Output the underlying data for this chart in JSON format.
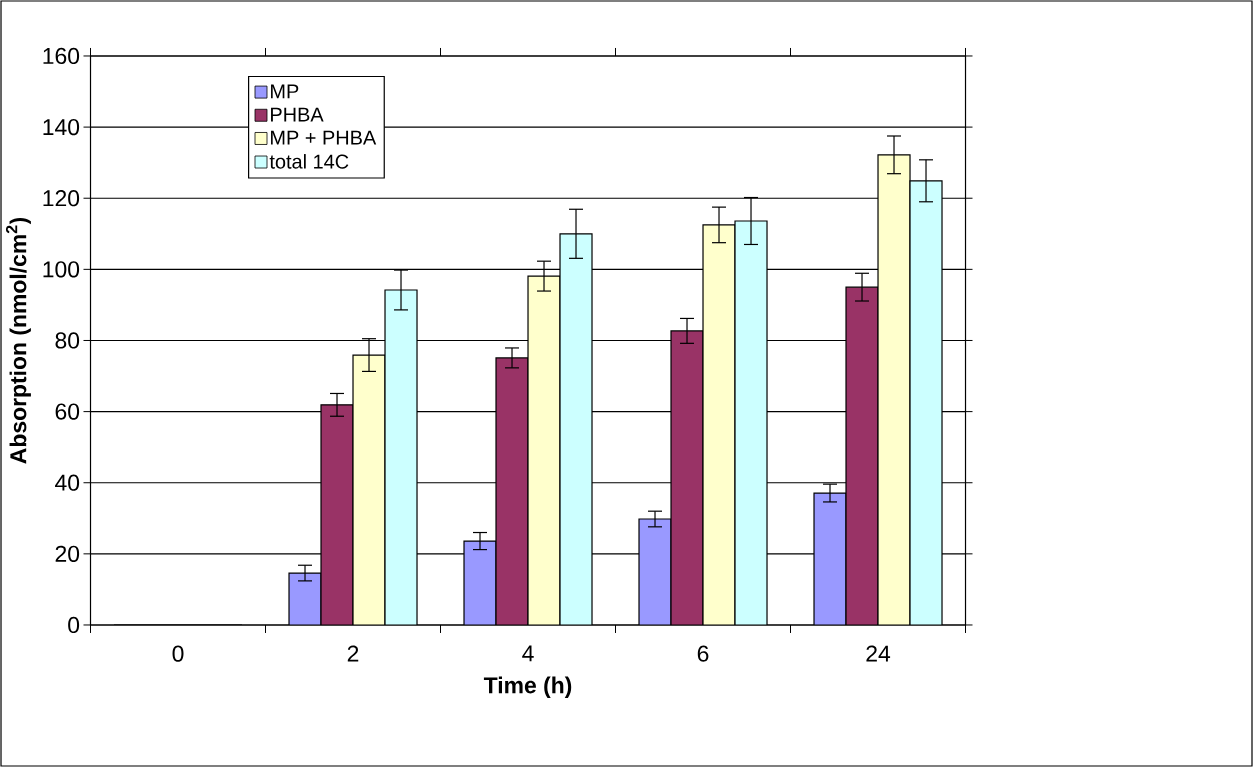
{
  "chart_data": {
    "type": "bar",
    "xlabel": "Time (h)",
    "ylabel": "Absorption (nmol/cm$^{2}$)",
    "categories": [
      "0",
      "2",
      "4",
      "6",
      "24"
    ],
    "series": [
      {
        "name": "MP",
        "color": "#9999ff",
        "values": [
          0,
          14.6,
          23.6,
          29.8,
          37.1
        ],
        "errors": [
          null,
          2.2,
          2.4,
          2.2,
          2.5
        ]
      },
      {
        "name": "PHBA",
        "color": "#993366",
        "values": [
          0,
          61.9,
          75.1,
          82.7,
          95.0
        ],
        "errors": [
          null,
          3.2,
          2.8,
          3.5,
          3.9
        ]
      },
      {
        "name": "MP + PHBA",
        "color": "#ffffcc",
        "values": [
          0,
          75.9,
          98.1,
          112.5,
          132.2
        ],
        "errors": [
          null,
          4.6,
          4.2,
          5.0,
          5.3
        ]
      },
      {
        "name": "total 14C",
        "color": "#ccffff",
        "values": [
          0,
          94.2,
          110.0,
          113.6,
          124.9
        ],
        "errors": [
          null,
          5.6,
          6.9,
          6.6,
          5.9
        ]
      }
    ],
    "ylim": [
      0,
      160
    ],
    "yticks": [
      0,
      20,
      40,
      60,
      80,
      100,
      120,
      140,
      160
    ],
    "grid": "y",
    "legend": "top left"
  }
}
